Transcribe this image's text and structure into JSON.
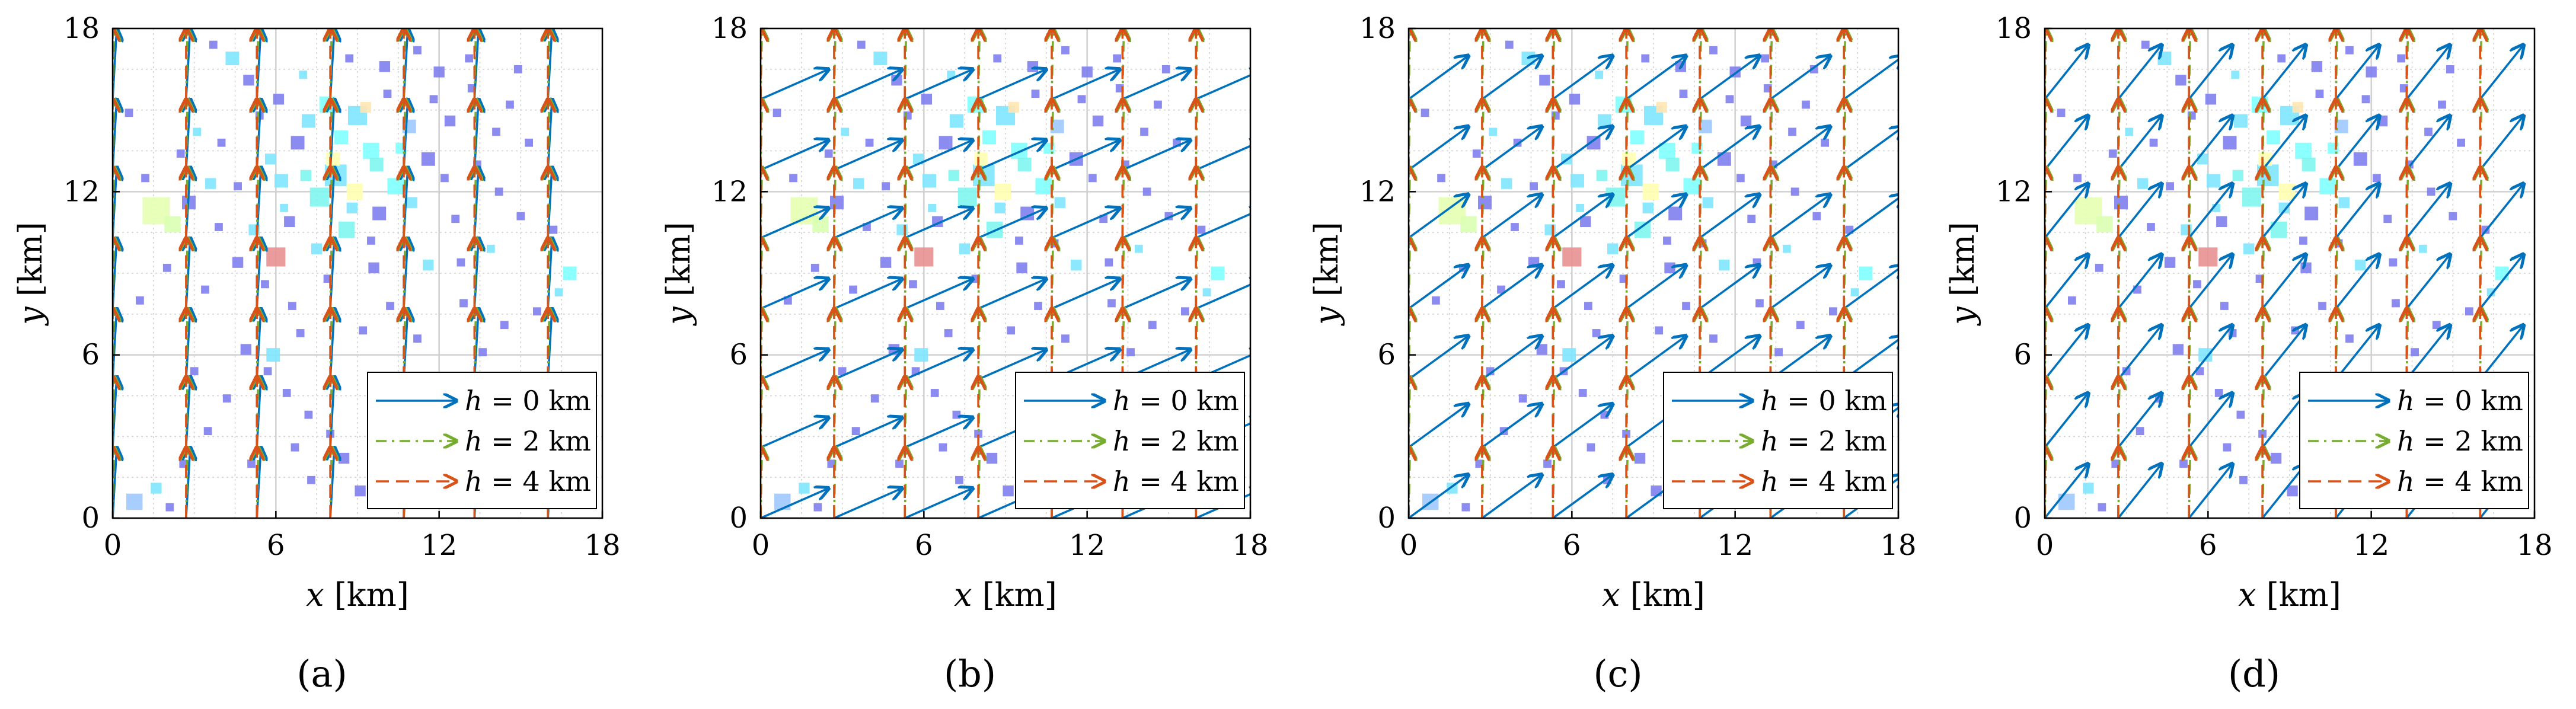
{
  "chart_data": [
    {
      "panel": "a",
      "type": "quiver",
      "title": "",
      "xlabel_var": "x",
      "ylabel_var": "y",
      "unit": "[km]",
      "xlim": [
        0,
        18
      ],
      "ylim": [
        0,
        18
      ],
      "xticks": [
        "0",
        "6",
        "12",
        "18"
      ],
      "yticks": [
        "0",
        "6",
        "12",
        "18"
      ],
      "grid": true,
      "legend": {
        "position": "bottom-right",
        "entries": [
          {
            "var": "h",
            "rel": " = ",
            "val": "0",
            "unit": "km",
            "series": "h0"
          },
          {
            "var": "h",
            "rel": " = ",
            "val": "2",
            "unit": "km",
            "series": "h2"
          },
          {
            "var": "h",
            "rel": " = ",
            "val": "4",
            "unit": "km",
            "series": "h4"
          }
        ]
      },
      "series": {
        "h0": {
          "color": "#0072BD",
          "dash": "",
          "dx": 0.15,
          "dy": 2.6
        },
        "h2": {
          "color": "#77AC30",
          "dash": "dashdot",
          "dx": 0.05,
          "dy": 2.6
        },
        "h4": {
          "color": "#D95319",
          "dash": "dashed",
          "dx": 0.0,
          "dy": 2.6
        }
      },
      "caption": "(a)"
    },
    {
      "panel": "b",
      "type": "quiver",
      "title": "",
      "xlabel_var": "x",
      "ylabel_var": "y",
      "unit": "[km]",
      "xlim": [
        0,
        18
      ],
      "ylim": [
        0,
        18
      ],
      "xticks": [
        "0",
        "6",
        "12",
        "18"
      ],
      "yticks": [
        "0",
        "6",
        "12",
        "18"
      ],
      "grid": true,
      "legend": {
        "position": "bottom-right",
        "entries": [
          {
            "var": "h",
            "rel": " = ",
            "val": "0",
            "unit": "km",
            "series": "h0"
          },
          {
            "var": "h",
            "rel": " = ",
            "val": "2",
            "unit": "km",
            "series": "h2"
          },
          {
            "var": "h",
            "rel": " = ",
            "val": "4",
            "unit": "km",
            "series": "h4"
          }
        ]
      },
      "series": {
        "h0": {
          "color": "#0072BD",
          "dash": "",
          "dx": 2.5,
          "dy": 1.1
        },
        "h2": {
          "color": "#77AC30",
          "dash": "dashdot",
          "dx": 0.05,
          "dy": 2.6
        },
        "h4": {
          "color": "#D95319",
          "dash": "dashed",
          "dx": 0.0,
          "dy": 2.6
        }
      },
      "caption": "(b)"
    },
    {
      "panel": "c",
      "type": "quiver",
      "title": "",
      "xlabel_var": "x",
      "ylabel_var": "y",
      "unit": "[km]",
      "xlim": [
        0,
        18
      ],
      "ylim": [
        0,
        18
      ],
      "xticks": [
        "0",
        "6",
        "12",
        "18"
      ],
      "yticks": [
        "0",
        "6",
        "12",
        "18"
      ],
      "grid": true,
      "legend": {
        "position": "bottom-right",
        "entries": [
          {
            "var": "h",
            "rel": " = ",
            "val": "0",
            "unit": "km",
            "series": "h0"
          },
          {
            "var": "h",
            "rel": " = ",
            "val": "2",
            "unit": "km",
            "series": "h2"
          },
          {
            "var": "h",
            "rel": " = ",
            "val": "4",
            "unit": "km",
            "series": "h4"
          }
        ]
      },
      "series": {
        "h0": {
          "color": "#0072BD",
          "dash": "",
          "dx": 2.2,
          "dy": 1.6
        },
        "h2": {
          "color": "#77AC30",
          "dash": "dashdot",
          "dx": 0.05,
          "dy": 2.6
        },
        "h4": {
          "color": "#D95319",
          "dash": "dashed",
          "dx": 0.0,
          "dy": 2.6
        }
      },
      "caption": "(c)"
    },
    {
      "panel": "d",
      "type": "quiver",
      "title": "",
      "xlabel_var": "x",
      "ylabel_var": "y",
      "unit": "[km]",
      "xlim": [
        0,
        18
      ],
      "ylim": [
        0,
        18
      ],
      "xticks": [
        "0",
        "6",
        "12",
        "18"
      ],
      "yticks": [
        "0",
        "6",
        "12",
        "18"
      ],
      "grid": true,
      "legend": {
        "position": "bottom-right",
        "entries": [
          {
            "var": "h",
            "rel": " = ",
            "val": "0",
            "unit": "km",
            "series": "h0"
          },
          {
            "var": "h",
            "rel": " = ",
            "val": "2",
            "unit": "km",
            "series": "h2"
          },
          {
            "var": "h",
            "rel": " = ",
            "val": "4",
            "unit": "km",
            "series": "h4"
          }
        ]
      },
      "series": {
        "h0": {
          "color": "#0072BD",
          "dash": "",
          "dx": 1.6,
          "dy": 2.0
        },
        "h2": {
          "color": "#77AC30",
          "dash": "dashdot",
          "dx": 0.05,
          "dy": 2.6
        },
        "h4": {
          "color": "#D95319",
          "dash": "dashed",
          "dx": 0.0,
          "dy": 2.6
        }
      },
      "caption": "(d)"
    }
  ],
  "arrow_grid": {
    "x": [
      0,
      2.7,
      5.3,
      8.0,
      10.7,
      13.3,
      16.0
    ],
    "y": [
      0,
      2.6,
      5.1,
      7.7,
      10.3,
      12.8,
      15.4
    ]
  },
  "scatter_points": [
    [
      9.5,
      13.5,
      0.6,
      "#7FFFFF"
    ],
    [
      8.2,
      12.6,
      0.8,
      "#7FE6FF"
    ],
    [
      7.6,
      11.8,
      0.7,
      "#80F5F0"
    ],
    [
      10.4,
      12.2,
      0.6,
      "#7FFFFF"
    ],
    [
      6.8,
      13.8,
      0.5,
      "#8080EE"
    ],
    [
      9.0,
      14.8,
      0.7,
      "#7FE6FF"
    ],
    [
      10.9,
      14.4,
      0.5,
      "#9FC8FF"
    ],
    [
      7.9,
      15.2,
      0.6,
      "#7FFFFF"
    ],
    [
      8.6,
      10.6,
      0.6,
      "#80F5F0"
    ],
    [
      11.6,
      13.2,
      0.5,
      "#8080EE"
    ],
    [
      6.2,
      12.4,
      0.5,
      "#7FE6FF"
    ],
    [
      9.8,
      11.2,
      0.5,
      "#8080EE"
    ],
    [
      2.8,
      11.6,
      0.5,
      "#8080EE"
    ],
    [
      3.6,
      12.3,
      0.4,
      "#7FE6FF"
    ],
    [
      1.6,
      11.3,
      1.0,
      "#E6FFB3"
    ],
    [
      2.2,
      10.8,
      0.6,
      "#D9FFB3"
    ],
    [
      6.0,
      9.6,
      0.7,
      "#E89090"
    ],
    [
      8.9,
      12.0,
      0.6,
      "#FFFFB3"
    ],
    [
      8.1,
      13.2,
      0.5,
      "#FFFFB3"
    ],
    [
      9.3,
      15.1,
      0.4,
      "#FFE6B3"
    ],
    [
      12.4,
      14.6,
      0.4,
      "#8080EE"
    ],
    [
      13.2,
      15.8,
      0.3,
      "#8080EE"
    ],
    [
      12.0,
      16.4,
      0.4,
      "#8080EE"
    ],
    [
      14.6,
      15.2,
      0.3,
      "#8080EE"
    ],
    [
      15.3,
      13.8,
      0.3,
      "#8080EE"
    ],
    [
      4.6,
      9.4,
      0.4,
      "#8080EE"
    ],
    [
      5.6,
      8.6,
      0.3,
      "#8080EE"
    ],
    [
      6.6,
      7.8,
      0.3,
      "#8080EE"
    ],
    [
      9.6,
      9.2,
      0.4,
      "#8080EE"
    ],
    [
      10.8,
      10.1,
      0.3,
      "#8080EE"
    ],
    [
      12.6,
      11.0,
      0.3,
      "#8080EE"
    ],
    [
      13.9,
      9.9,
      0.3,
      "#7FE6FF"
    ],
    [
      16.8,
      9.0,
      0.5,
      "#7FFFFF"
    ],
    [
      11.6,
      9.3,
      0.4,
      "#7FE6FF"
    ],
    [
      4.0,
      13.8,
      0.3,
      "#8080EE"
    ],
    [
      3.1,
      14.2,
      0.3,
      "#7FE6FF"
    ],
    [
      5.0,
      16.1,
      0.4,
      "#8080EE"
    ],
    [
      4.4,
      16.9,
      0.5,
      "#7FE6FF"
    ],
    [
      5.4,
      14.8,
      0.3,
      "#8080EE"
    ],
    [
      1.2,
      12.5,
      0.3,
      "#8080EE"
    ],
    [
      0.6,
      14.9,
      0.3,
      "#8080EE"
    ],
    [
      2.0,
      9.2,
      0.3,
      "#8080EE"
    ],
    [
      3.4,
      8.4,
      0.3,
      "#8080EE"
    ],
    [
      1.0,
      8.0,
      0.3,
      "#8080EE"
    ],
    [
      4.9,
      6.2,
      0.4,
      "#8080EE"
    ],
    [
      5.7,
      5.4,
      0.3,
      "#8080EE"
    ],
    [
      6.4,
      4.6,
      0.3,
      "#8080EE"
    ],
    [
      7.2,
      3.8,
      0.3,
      "#8080EE"
    ],
    [
      8.0,
      3.1,
      0.3,
      "#8080EE"
    ],
    [
      8.5,
      2.2,
      0.4,
      "#8080EE"
    ],
    [
      7.3,
      1.4,
      0.3,
      "#8080EE"
    ],
    [
      9.1,
      1.0,
      0.4,
      "#8080EE"
    ],
    [
      10.2,
      1.8,
      0.3,
      "#8080EE"
    ],
    [
      11.4,
      2.6,
      0.3,
      "#8080EE"
    ],
    [
      4.2,
      4.4,
      0.3,
      "#8080EE"
    ],
    [
      3.5,
      3.2,
      0.3,
      "#8080EE"
    ],
    [
      2.6,
      2.0,
      0.3,
      "#8080EE"
    ],
    [
      1.6,
      1.1,
      0.4,
      "#7FE6FF"
    ],
    [
      0.8,
      0.6,
      0.6,
      "#9FC8FF"
    ],
    [
      2.1,
      0.4,
      0.3,
      "#8080EE"
    ],
    [
      5.9,
      6.0,
      0.5,
      "#7FE6FF"
    ],
    [
      13.6,
      6.1,
      0.3,
      "#8080EE"
    ],
    [
      14.4,
      7.1,
      0.3,
      "#8080EE"
    ],
    [
      15.6,
      7.6,
      0.3,
      "#8080EE"
    ],
    [
      16.4,
      8.3,
      0.3,
      "#7FE6FF"
    ],
    [
      12.9,
      7.9,
      0.3,
      "#8080EE"
    ],
    [
      11.2,
      6.6,
      0.3,
      "#8080EE"
    ],
    [
      10.2,
      7.8,
      0.3,
      "#8080EE"
    ],
    [
      7.9,
      8.8,
      0.3,
      "#8080EE"
    ],
    [
      9.2,
      6.9,
      0.3,
      "#8080EE"
    ],
    [
      6.9,
      6.8,
      0.3,
      "#8080EE"
    ],
    [
      5.2,
      10.6,
      0.4,
      "#7FE6FF"
    ],
    [
      6.5,
      10.9,
      0.4,
      "#8080EE"
    ],
    [
      7.5,
      9.9,
      0.4,
      "#7FE6FF"
    ],
    [
      11.0,
      11.6,
      0.4,
      "#7FE6FF"
    ],
    [
      12.2,
      12.5,
      0.3,
      "#8080EE"
    ],
    [
      13.4,
      13.0,
      0.3,
      "#8080EE"
    ],
    [
      14.2,
      12.0,
      0.3,
      "#8080EE"
    ],
    [
      15.0,
      11.1,
      0.3,
      "#8080EE"
    ],
    [
      13.1,
      16.9,
      0.3,
      "#8080EE"
    ],
    [
      14.9,
      16.5,
      0.3,
      "#8080EE"
    ],
    [
      10.0,
      16.6,
      0.4,
      "#8080EE"
    ],
    [
      11.2,
      17.2,
      0.3,
      "#8080EE"
    ],
    [
      8.7,
      16.9,
      0.3,
      "#8080EE"
    ],
    [
      7.0,
      16.3,
      0.3,
      "#7FE6FF"
    ],
    [
      6.1,
      15.4,
      0.4,
      "#8080EE"
    ],
    [
      5.8,
      13.2,
      0.4,
      "#7FE6FF"
    ],
    [
      4.6,
      12.2,
      0.3,
      "#8080EE"
    ],
    [
      3.9,
      10.7,
      0.3,
      "#8080EE"
    ],
    [
      2.5,
      13.4,
      0.3,
      "#8080EE"
    ],
    [
      7.2,
      14.6,
      0.5,
      "#7FE6FF"
    ],
    [
      8.4,
      14.0,
      0.5,
      "#7FFFFF"
    ],
    [
      9.7,
      13.0,
      0.5,
      "#80F5F0"
    ],
    [
      10.6,
      13.6,
      0.4,
      "#7FFFFF"
    ],
    [
      8.8,
      11.4,
      0.4,
      "#7FE6FF"
    ],
    [
      7.1,
      12.6,
      0.4,
      "#80F5F0"
    ],
    [
      10.1,
      15.6,
      0.3,
      "#8080EE"
    ],
    [
      11.8,
      15.4,
      0.3,
      "#8080EE"
    ],
    [
      9.5,
      10.2,
      0.3,
      "#8080EE"
    ],
    [
      6.3,
      11.4,
      0.3,
      "#7FE6FF"
    ],
    [
      3.7,
      17.4,
      0.3,
      "#8080EE"
    ],
    [
      14.1,
      14.2,
      0.3,
      "#8080EE"
    ],
    [
      12.8,
      9.4,
      0.3,
      "#8080EE"
    ],
    [
      16.2,
      10.6,
      0.3,
      "#8080EE"
    ],
    [
      11.9,
      4.6,
      0.3,
      "#8080EE"
    ],
    [
      10.6,
      5.2,
      0.3,
      "#8080EE"
    ],
    [
      9.8,
      4.2,
      0.3,
      "#8080EE"
    ],
    [
      12.5,
      3.4,
      0.3,
      "#8080EE"
    ],
    [
      13.6,
      2.6,
      0.3,
      "#8080EE"
    ],
    [
      6.7,
      2.6,
      0.3,
      "#8080EE"
    ],
    [
      5.1,
      2.0,
      0.3,
      "#8080EE"
    ],
    [
      3.0,
      5.4,
      0.3,
      "#8080EE"
    ]
  ]
}
